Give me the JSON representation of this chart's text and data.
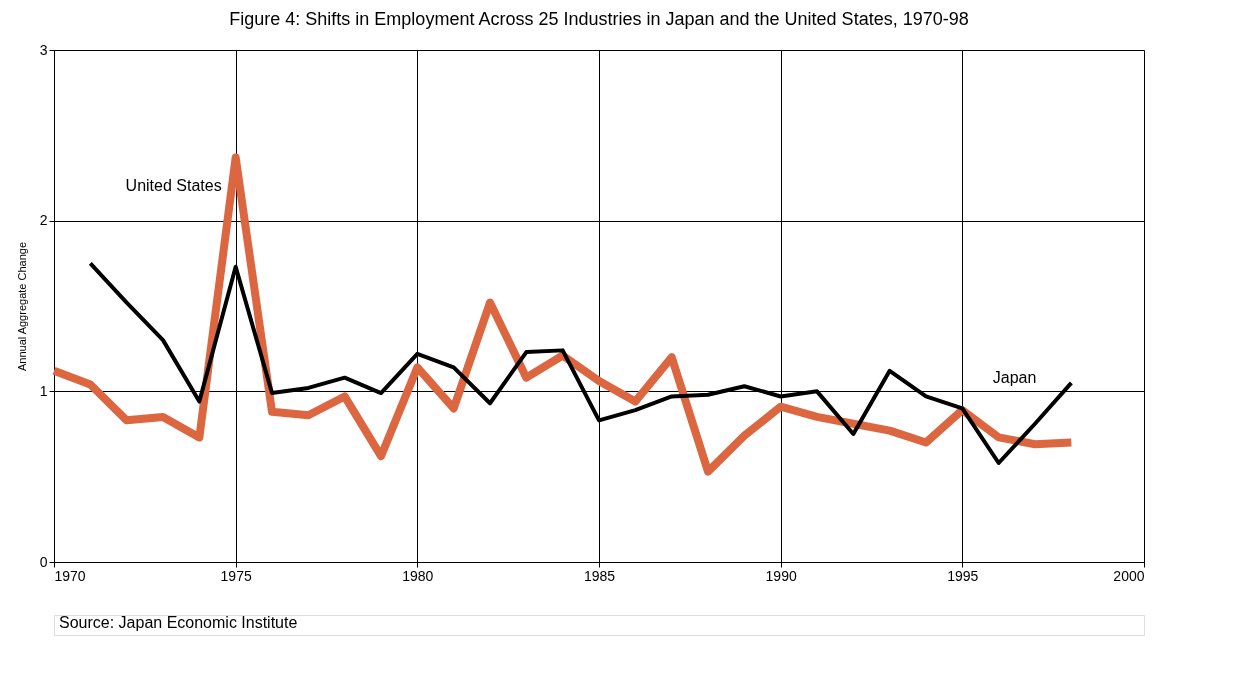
{
  "chart_data": {
    "type": "line",
    "title": "Figure 4:  Shifts in Employment Across 25 Industries in Japan and the United States, 1970-98",
    "ylabel": "Annual Aggregate Change",
    "xlim": [
      1970,
      2000
    ],
    "xticks": [
      1970,
      1975,
      1980,
      1985,
      1990,
      1995,
      2000
    ],
    "ylim": [
      0,
      3
    ],
    "yticks": [
      0,
      1,
      2,
      3
    ],
    "grid": true,
    "legend": false,
    "marker": "none",
    "line_style": "solid",
    "series": [
      {
        "name": "United States",
        "color": "#db6640",
        "x": [
          1970,
          1971,
          1972,
          1973,
          1974,
          1975,
          1976,
          1977,
          1978,
          1979,
          1980,
          1981,
          1982,
          1983,
          1984,
          1985,
          1986,
          1987,
          1988,
          1989,
          1990,
          1991,
          1992,
          1993,
          1994,
          1995,
          1996,
          1997,
          1998
        ],
        "values": [
          1.12,
          1.04,
          0.83,
          0.85,
          0.73,
          2.37,
          0.88,
          0.86,
          0.97,
          0.62,
          1.14,
          0.9,
          1.52,
          1.08,
          1.21,
          1.06,
          0.94,
          1.2,
          0.53,
          0.74,
          0.91,
          0.85,
          0.81,
          0.77,
          0.7,
          0.89,
          0.73,
          0.69,
          0.7
        ]
      },
      {
        "name": "Japan",
        "color": "#000000",
        "x": [
          1971,
          1972,
          1973,
          1974,
          1975,
          1976,
          1977,
          1978,
          1979,
          1980,
          1981,
          1982,
          1983,
          1984,
          1985,
          1986,
          1987,
          1988,
          1989,
          1990,
          1991,
          1992,
          1993,
          1994,
          1995,
          1996,
          1997,
          1998
        ],
        "values": [
          1.75,
          1.52,
          1.3,
          0.94,
          1.73,
          0.99,
          1.02,
          1.08,
          0.99,
          1.22,
          1.14,
          0.93,
          1.23,
          1.24,
          0.83,
          0.89,
          0.97,
          0.98,
          1.03,
          0.97,
          1.0,
          0.75,
          1.12,
          0.97,
          0.9,
          0.58,
          0.81,
          1.05
        ]
      }
    ],
    "annotations": [
      "Source:  Japan Economic Institute"
    ]
  }
}
